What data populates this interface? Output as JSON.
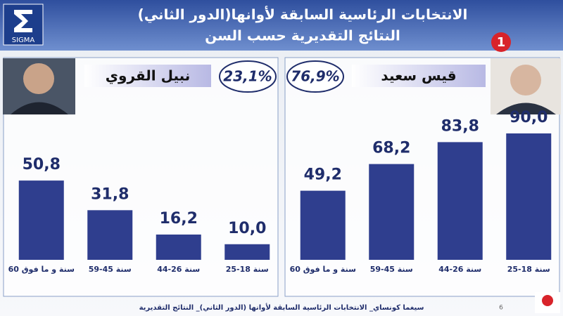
{
  "header": {
    "title": "الانتخابات الرئاسية السابقة لأوانها(الدور الثاني)",
    "subtitle": "النتائج التقديرية حسب السن",
    "logo": "SIGMA",
    "channel": "1"
  },
  "chart_data": [
    {
      "type": "bar",
      "title": "نبيل القروي",
      "annotations": [
        "23,1%"
      ],
      "categories": [
        "60 سنة و ما فوق",
        "59-45 سنة",
        "44-26 سنة",
        "25-18 سنة"
      ],
      "values": [
        50.8,
        31.8,
        16.2,
        10.0
      ],
      "value_labels": [
        "50,8",
        "31,8",
        "16,2",
        "10,0"
      ],
      "color": "#2f3e8e",
      "ylim": [
        0,
        90
      ]
    },
    {
      "type": "bar",
      "title": "قيس سعيد",
      "annotations": [
        "76,9%"
      ],
      "categories": [
        "60 سنة و ما فوق",
        "59-45 سنة",
        "44-26 سنة",
        "25-18 سنة"
      ],
      "values": [
        49.2,
        68.2,
        83.8,
        90.0
      ],
      "value_labels": [
        "49,2",
        "68,2",
        "83,8",
        "90,0"
      ],
      "color": "#2f3e8e",
      "ylim": [
        0,
        100
      ]
    }
  ],
  "footer": {
    "text": "سيغما كونساي_ الانتخابات الرئاسية السابقة لأوانها (الدور الثاني)_ النتائج التقديرية",
    "page": "6"
  }
}
